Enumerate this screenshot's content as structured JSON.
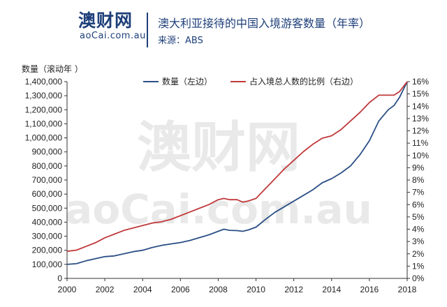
{
  "header": {
    "logo_main": "澳财网",
    "logo_sub": "aoCai.com.au",
    "title": "澳大利亚接待的中国入境游客数量（年率）",
    "source": "来源：ABS"
  },
  "watermark": {
    "main": "澳财网",
    "sub": "aoCai.com.au"
  },
  "colors": {
    "series_count": "#2b4f86",
    "series_share": "#c0393b",
    "brand": "#1e3f7a"
  },
  "chart_data": {
    "type": "line",
    "y_left_title": "数量（滚动年 ）",
    "xlim": [
      2000,
      2018
    ],
    "x_ticks": [
      "2000",
      "2002",
      "2004",
      "2006",
      "2008",
      "2010",
      "2012",
      "2014",
      "2016",
      "2018"
    ],
    "y_left_lim": [
      0,
      1400000
    ],
    "y_left_ticks": [
      "0",
      "100,000",
      "200,000",
      "300,000",
      "400,000",
      "500,000",
      "600,000",
      "700,000",
      "800,000",
      "900,000",
      "1,000,000",
      "1,100,000",
      "1,200,000",
      "1,300,000",
      "1,400,000"
    ],
    "y_right_lim": [
      0,
      16
    ],
    "y_right_ticks": [
      "0%",
      "1%",
      "2%",
      "3%",
      "4%",
      "5%",
      "6%",
      "7%",
      "8%",
      "9%",
      "10%",
      "11%",
      "12%",
      "13%",
      "14%",
      "15%",
      "16%"
    ],
    "legend_placement": "top",
    "series": [
      {
        "name": "数量（左边）",
        "axis": "left",
        "x": [
          2000.0,
          2000.5,
          2001.0,
          2001.5,
          2002.0,
          2002.5,
          2003.0,
          2003.5,
          2004.0,
          2004.5,
          2005.0,
          2005.5,
          2006.0,
          2006.5,
          2007.0,
          2007.5,
          2008.0,
          2008.3,
          2008.6,
          2009.0,
          2009.3,
          2009.6,
          2010.0,
          2010.5,
          2011.0,
          2011.5,
          2012.0,
          2012.5,
          2013.0,
          2013.5,
          2014.0,
          2014.5,
          2015.0,
          2015.5,
          2016.0,
          2016.5,
          2017.0,
          2017.3,
          2017.6,
          2018.0
        ],
        "values": [
          100000,
          105000,
          125000,
          140000,
          155000,
          160000,
          175000,
          190000,
          200000,
          220000,
          235000,
          245000,
          255000,
          270000,
          290000,
          310000,
          335000,
          350000,
          342000,
          340000,
          335000,
          345000,
          365000,
          420000,
          470000,
          510000,
          550000,
          590000,
          630000,
          680000,
          710000,
          750000,
          800000,
          880000,
          980000,
          1120000,
          1200000,
          1230000,
          1290000,
          1400000
        ]
      },
      {
        "name": "占入境总人数的比例（右边）",
        "axis": "right",
        "x": [
          2000.0,
          2000.5,
          2001.0,
          2001.5,
          2002.0,
          2002.5,
          2003.0,
          2003.5,
          2004.0,
          2004.5,
          2005.0,
          2005.5,
          2006.0,
          2006.5,
          2007.0,
          2007.5,
          2008.0,
          2008.3,
          2008.6,
          2009.0,
          2009.3,
          2009.6,
          2010.0,
          2010.5,
          2011.0,
          2011.5,
          2012.0,
          2012.5,
          2013.0,
          2013.5,
          2014.0,
          2014.5,
          2015.0,
          2015.5,
          2016.0,
          2016.5,
          2017.0,
          2017.3,
          2017.6,
          2018.0
        ],
        "values": [
          2.2,
          2.3,
          2.6,
          2.9,
          3.3,
          3.6,
          3.9,
          4.1,
          4.3,
          4.5,
          4.6,
          4.8,
          5.1,
          5.4,
          5.7,
          6.0,
          6.4,
          6.5,
          6.4,
          6.4,
          6.2,
          6.3,
          6.5,
          7.3,
          8.1,
          8.9,
          9.6,
          10.3,
          10.9,
          11.4,
          11.6,
          12.1,
          12.8,
          13.5,
          14.3,
          14.9,
          14.9,
          14.9,
          15.2,
          16.0
        ]
      }
    ]
  }
}
